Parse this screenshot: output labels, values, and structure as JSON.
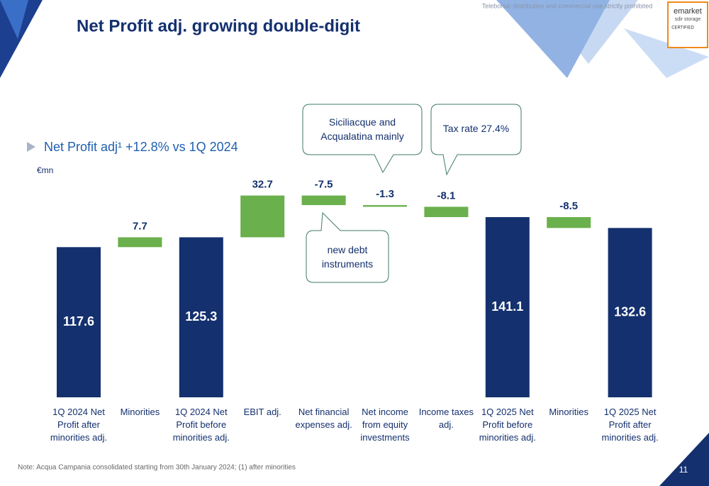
{
  "header": {
    "watermark": "Teleborsa: distribution and commercial use strictly prohibited",
    "badge": [
      "emarket",
      "sdir storage",
      "CERTIFIED"
    ]
  },
  "chart_data": {
    "type": "waterfall",
    "title": "Net Profit adj. growing double-digit",
    "subtitle": "Net Profit adj¹ +12.8% vs 1Q 2024",
    "unit": "€mn",
    "categories": [
      "1Q 2024 Net Profit after minorities adj.",
      "Minorities",
      "1Q 2024 Net Profit before minorities adj.",
      "EBIT adj.",
      "Net financial expenses adj.",
      "Net income from equity investments",
      "Income taxes adj.",
      "1Q 2025 Net Profit before minorities adj.",
      "Minorities",
      "1Q 2025 Net Profit after minorities adj."
    ],
    "values": [
      117.6,
      7.7,
      125.3,
      32.7,
      -7.5,
      -1.3,
      -8.1,
      141.1,
      -8.5,
      132.6
    ],
    "totals": [
      0,
      2,
      7,
      9
    ],
    "total_color": "#14306e",
    "delta_color": "#6ab04c",
    "annotations": [
      "Siciliacque and Acqualatina mainly",
      "Tax rate 27.4%",
      "new debt instruments"
    ],
    "note": "Note: Acqua Campania consolidated starting from 30th January 2024; (1) after minorities"
  },
  "page_number": "11"
}
